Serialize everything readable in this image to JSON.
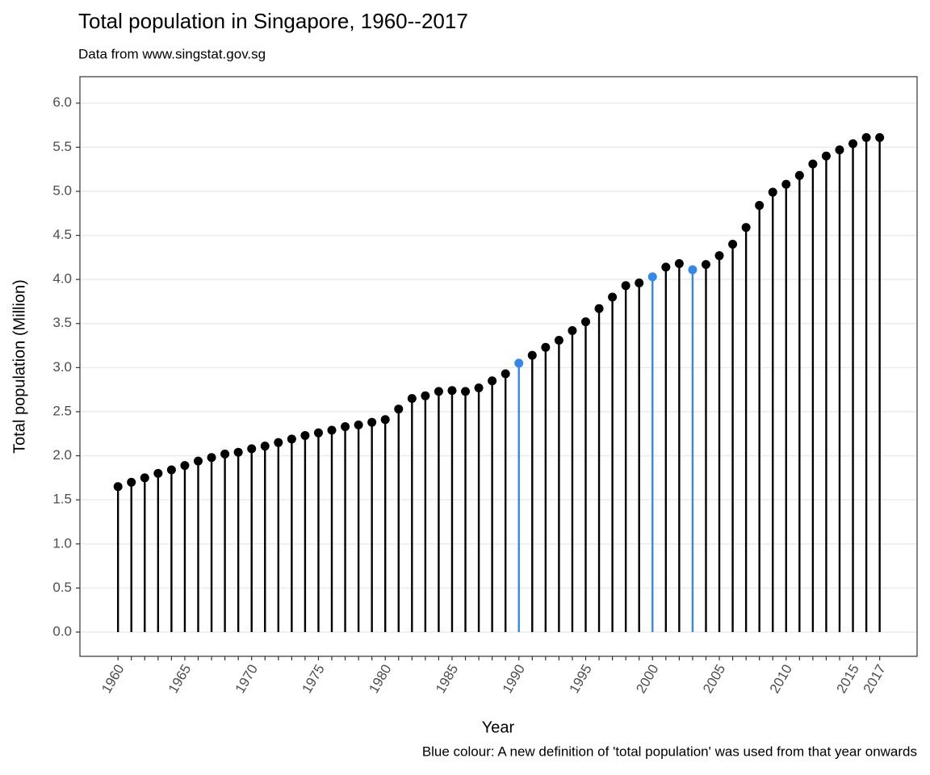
{
  "chart_data": {
    "type": "lollipop",
    "title": "Total population in Singapore, 1960--2017",
    "subtitle": "Data from www.singstat.gov.sg",
    "x_label": "Year",
    "y_label": "Total population (Million)",
    "caption": "Blue colour: A new definition of 'total population' was used from that year onwards",
    "x": [
      1960,
      1961,
      1962,
      1963,
      1964,
      1965,
      1966,
      1967,
      1968,
      1969,
      1970,
      1971,
      1972,
      1973,
      1974,
      1975,
      1976,
      1977,
      1978,
      1979,
      1980,
      1981,
      1982,
      1983,
      1984,
      1985,
      1986,
      1987,
      1988,
      1989,
      1990,
      1991,
      1992,
      1993,
      1994,
      1995,
      1996,
      1997,
      1998,
      1999,
      2000,
      2001,
      2002,
      2003,
      2004,
      2005,
      2006,
      2007,
      2008,
      2009,
      2010,
      2011,
      2012,
      2013,
      2014,
      2015,
      2016,
      2017
    ],
    "values": [
      1.65,
      1.7,
      1.75,
      1.8,
      1.84,
      1.89,
      1.94,
      1.98,
      2.02,
      2.04,
      2.08,
      2.11,
      2.15,
      2.19,
      2.23,
      2.26,
      2.29,
      2.33,
      2.35,
      2.38,
      2.41,
      2.53,
      2.65,
      2.68,
      2.73,
      2.74,
      2.73,
      2.77,
      2.85,
      2.93,
      3.05,
      3.14,
      3.23,
      3.31,
      3.42,
      3.52,
      3.67,
      3.8,
      3.93,
      3.96,
      4.03,
      4.14,
      4.18,
      4.11,
      4.17,
      4.27,
      4.4,
      4.59,
      4.84,
      4.99,
      5.08,
      5.18,
      5.31,
      5.4,
      5.47,
      5.54,
      5.61,
      5.61
    ],
    "colors": [
      "#000000",
      "#000000",
      "#000000",
      "#000000",
      "#000000",
      "#000000",
      "#000000",
      "#000000",
      "#000000",
      "#000000",
      "#000000",
      "#000000",
      "#000000",
      "#000000",
      "#000000",
      "#000000",
      "#000000",
      "#000000",
      "#000000",
      "#000000",
      "#000000",
      "#000000",
      "#000000",
      "#000000",
      "#000000",
      "#000000",
      "#000000",
      "#000000",
      "#000000",
      "#000000",
      "#3388ee",
      "#000000",
      "#000000",
      "#000000",
      "#000000",
      "#000000",
      "#000000",
      "#000000",
      "#000000",
      "#000000",
      "#3388ee",
      "#000000",
      "#000000",
      "#3388ee",
      "#000000",
      "#000000",
      "#000000",
      "#000000",
      "#000000",
      "#000000",
      "#000000",
      "#000000",
      "#000000",
      "#000000",
      "#000000",
      "#000000",
      "#000000",
      "#000000"
    ],
    "xlim": [
      1957.15,
      2019.8
    ],
    "xticks": [
      1960,
      1965,
      1970,
      1975,
      1980,
      1985,
      1990,
      1995,
      2000,
      2005,
      2010,
      2015,
      2017
    ],
    "ylim": [
      -0.275,
      6.3
    ],
    "yticks": [
      {
        "value": 0,
        "label": "0.0"
      },
      0.5,
      {
        "value": 1,
        "label": "1.0"
      },
      1.5,
      {
        "value": 2,
        "label": "2.0"
      },
      2.5,
      {
        "value": 3,
        "label": "3.0"
      },
      3.5,
      {
        "value": 4,
        "label": "4.0"
      },
      4.5,
      {
        "value": 5,
        "label": "5.0"
      },
      5.5,
      {
        "value": 6,
        "label": "6.0"
      }
    ],
    "grid": true
  }
}
